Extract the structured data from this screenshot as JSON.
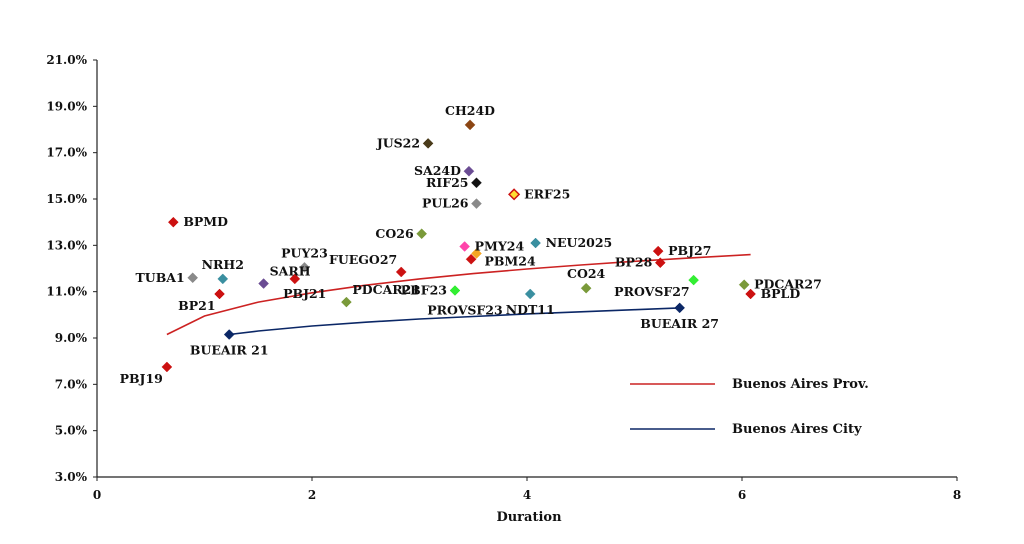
{
  "chart_data": {
    "type": "scatter",
    "xlabel": "Duration",
    "ylabel": "",
    "xlim": [
      0,
      8
    ],
    "ylim": [
      3,
      21
    ],
    "x_ticks": [
      {
        "value": 0,
        "label": "0"
      },
      {
        "value": 2,
        "label": "2"
      },
      {
        "value": 4,
        "label": "4"
      },
      {
        "value": 6,
        "label": "6"
      },
      {
        "value": 8,
        "label": "8"
      }
    ],
    "y_ticks": [
      {
        "value": 3,
        "label": "3.0%"
      },
      {
        "value": 5,
        "label": "5.0%"
      },
      {
        "value": 7,
        "label": "7.0%"
      },
      {
        "value": 9,
        "label": "9.0%"
      },
      {
        "value": 11,
        "label": "11.0%"
      },
      {
        "value": 13,
        "label": "13.0%"
      },
      {
        "value": 15,
        "label": "15.0%"
      },
      {
        "value": 17,
        "label": "17.0%"
      },
      {
        "value": 19,
        "label": "19.0%"
      },
      {
        "value": 21,
        "label": "21.0%"
      }
    ],
    "grid": false,
    "legend_position": "bottom-right",
    "points": [
      {
        "label": "CH24D",
        "x": 3.47,
        "y": 18.2,
        "color": "#8b4513",
        "label_anchor": "above"
      },
      {
        "label": "JUS22",
        "x": 3.08,
        "y": 17.4,
        "color": "#4a3b1a",
        "label_anchor": "left"
      },
      {
        "label": "SA24D",
        "x": 3.46,
        "y": 16.2,
        "color": "#6a4c93",
        "label_anchor": "left"
      },
      {
        "label": "RIF25",
        "x": 3.53,
        "y": 15.7,
        "color": "#111111",
        "label_anchor": "left"
      },
      {
        "label": "PUL26",
        "x": 3.53,
        "y": 14.8,
        "color": "#8a8a8a",
        "label_anchor": "left"
      },
      {
        "label": "ERF25",
        "x": 3.88,
        "y": 15.2,
        "color": "#ffdd33",
        "stroke": "#cc1111",
        "label_anchor": "right"
      },
      {
        "label": "BPMD",
        "x": 0.71,
        "y": 14.0,
        "color": "#cc1111",
        "label_anchor": "right"
      },
      {
        "label": "CO26",
        "x": 3.02,
        "y": 13.5,
        "color": "#7a9a3a",
        "label_anchor": "left"
      },
      {
        "label": "NEU2025",
        "x": 4.08,
        "y": 13.1,
        "color": "#3a8fa0",
        "label_anchor": "right"
      },
      {
        "label": "PMY24",
        "x": 3.42,
        "y": 12.95,
        "color": "#ff44aa",
        "label_anchor": "right"
      },
      {
        "label": "PBM24",
        "x": 3.53,
        "y": 12.65,
        "color": "#f5a623",
        "label_anchor": "below-right"
      },
      {
        "label": "",
        "x": 3.48,
        "y": 12.4,
        "color": "#cc1111",
        "label_anchor": "none"
      },
      {
        "label": "PBJ27",
        "x": 5.22,
        "y": 12.75,
        "color": "#cc1111",
        "label_anchor": "right"
      },
      {
        "label": "BP28",
        "x": 5.24,
        "y": 12.25,
        "color": "#cc1111",
        "label_anchor": "left"
      },
      {
        "label": "FUEGO27",
        "x": 2.83,
        "y": 11.85,
        "color": "#cc1111",
        "label_anchor": "above-left"
      },
      {
        "label": "PUY23",
        "x": 1.93,
        "y": 12.05,
        "color": "#8a8a8a",
        "label_anchor": "above"
      },
      {
        "label": "NRH2",
        "x": 1.17,
        "y": 11.55,
        "color": "#3a8fa0",
        "label_anchor": "above"
      },
      {
        "label": "TUBA1",
        "x": 0.89,
        "y": 11.6,
        "color": "#8a8a8a",
        "label_anchor": "left"
      },
      {
        "label": "SARH",
        "x": 1.55,
        "y": 11.35,
        "color": "#6a4c93",
        "label_anchor": "above-right"
      },
      {
        "label": "",
        "x": 1.84,
        "y": 11.55,
        "color": "#cc1111",
        "label_anchor": "none"
      },
      {
        "label": "PDCAR21",
        "x": 2.32,
        "y": 10.55,
        "color": "#7a9a3a",
        "label_anchor": "above-right"
      },
      {
        "label": "PBJ21",
        "x": 2.32,
        "y": 10.55,
        "color": "#7a9a3a",
        "label_anchor": "left-only"
      },
      {
        "label": "BP21",
        "x": 1.14,
        "y": 10.9,
        "color": "#cc1111",
        "label_anchor": "below-left"
      },
      {
        "label": "PBF23",
        "x": 3.33,
        "y": 11.05,
        "color": "#33ee33",
        "label_anchor": "left"
      },
      {
        "label": "PROVSF23",
        "x": 3.33,
        "y": 11.05,
        "color": "#33ee33",
        "label_anchor": "below-only"
      },
      {
        "label": "NDT11",
        "x": 4.03,
        "y": 10.9,
        "color": "#3a8fa0",
        "label_anchor": "below"
      },
      {
        "label": "CO24",
        "x": 4.55,
        "y": 11.15,
        "color": "#7a9a3a",
        "label_anchor": "above"
      },
      {
        "label": "PROVSF27",
        "x": 5.55,
        "y": 11.5,
        "color": "#33ee33",
        "label_anchor": "below-left"
      },
      {
        "label": "PDCAR27",
        "x": 6.02,
        "y": 11.3,
        "color": "#7a9a3a",
        "label_anchor": "right"
      },
      {
        "label": "BPLD",
        "x": 6.08,
        "y": 10.9,
        "color": "#cc1111",
        "label_anchor": "right"
      },
      {
        "label": "BUEAIR 27",
        "x": 5.42,
        "y": 10.3,
        "color": "#0b2766",
        "label_anchor": "below"
      },
      {
        "label": "BUEAIR 21",
        "x": 1.23,
        "y": 9.15,
        "color": "#0b2766",
        "label_anchor": "below"
      },
      {
        "label": "PBJ19",
        "x": 0.65,
        "y": 7.75,
        "color": "#cc1111",
        "label_anchor": "below-left"
      }
    ],
    "series": [
      {
        "name": "Buenos Aires Prov.",
        "color": "#cc2222",
        "type": "trend",
        "x": [
          0.65,
          1.0,
          1.5,
          2.0,
          2.5,
          3.0,
          3.5,
          4.0,
          4.5,
          5.0,
          5.5,
          6.08
        ],
        "y": [
          9.15,
          9.95,
          10.55,
          10.95,
          11.28,
          11.55,
          11.78,
          11.98,
          12.15,
          12.31,
          12.45,
          12.6
        ]
      },
      {
        "name": "Buenos Aires City",
        "color": "#0b2766",
        "type": "trend",
        "x": [
          1.23,
          1.5,
          2.0,
          2.5,
          3.0,
          3.5,
          4.0,
          4.5,
          5.0,
          5.42
        ],
        "y": [
          9.15,
          9.3,
          9.52,
          9.68,
          9.82,
          9.93,
          10.04,
          10.13,
          10.22,
          10.3
        ]
      }
    ],
    "legend": [
      {
        "label": "Buenos Aires Prov.",
        "color": "#cc2222"
      },
      {
        "label": "Buenos Aires City",
        "color": "#0b2766"
      }
    ]
  }
}
